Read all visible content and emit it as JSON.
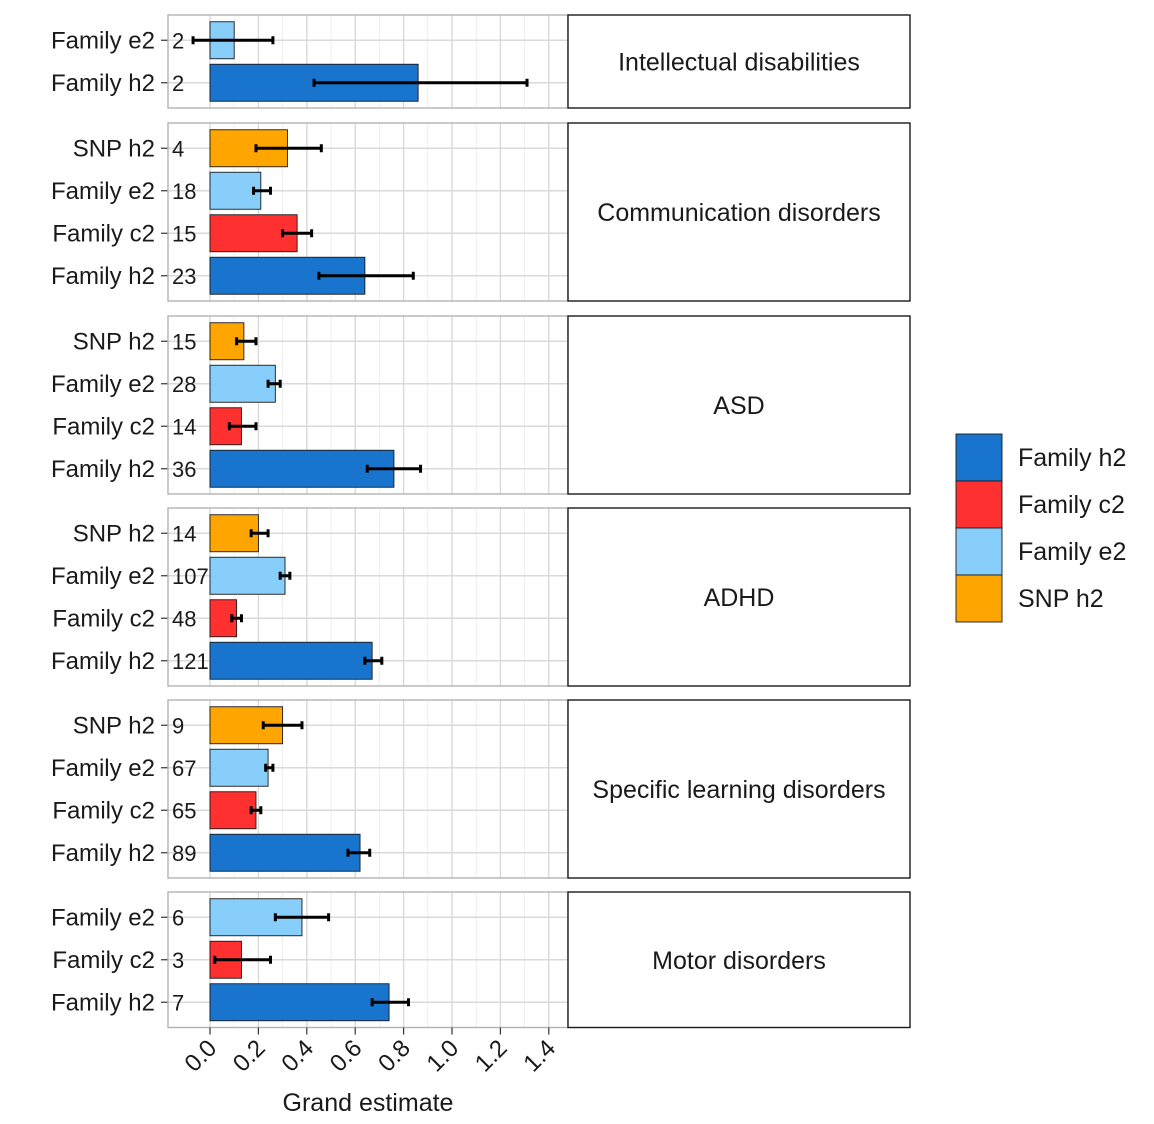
{
  "chart_data": {
    "type": "bar",
    "orientation": "horizontal",
    "xlabel": "Grand estimate",
    "xlim": [
      -0.15,
      1.47
    ],
    "xticks": [
      "0.0",
      "0.2",
      "0.4",
      "0.6",
      "0.8",
      "1.0",
      "1.2",
      "1.4"
    ],
    "legend": {
      "placement": "right",
      "entries": [
        {
          "name": "Family h2",
          "color": "#1874CD"
        },
        {
          "name": "Family c2",
          "color": "#FF3030"
        },
        {
          "name": "Family e2",
          "color": "#87CEFA"
        },
        {
          "name": "SNP h2",
          "color": "#FFA500"
        }
      ]
    },
    "panels": [
      {
        "title": "Intellectual disabilities",
        "bars": [
          {
            "label": "Family e2",
            "n": "2",
            "value": 0.1,
            "lo": -0.07,
            "hi": 0.26
          },
          {
            "label": "Family h2",
            "n": "2",
            "value": 0.86,
            "lo": 0.43,
            "hi": 1.31
          }
        ]
      },
      {
        "title": "Communication disorders",
        "bars": [
          {
            "label": "SNP h2",
            "n": "4",
            "value": 0.32,
            "lo": 0.19,
            "hi": 0.46
          },
          {
            "label": "Family e2",
            "n": "18",
            "value": 0.21,
            "lo": 0.18,
            "hi": 0.25
          },
          {
            "label": "Family c2",
            "n": "15",
            "value": 0.36,
            "lo": 0.3,
            "hi": 0.42
          },
          {
            "label": "Family h2",
            "n": "23",
            "value": 0.64,
            "lo": 0.45,
            "hi": 0.84
          }
        ]
      },
      {
        "title": "ASD",
        "bars": [
          {
            "label": "SNP h2",
            "n": "15",
            "value": 0.14,
            "lo": 0.11,
            "hi": 0.19
          },
          {
            "label": "Family e2",
            "n": "28",
            "value": 0.27,
            "lo": 0.24,
            "hi": 0.29
          },
          {
            "label": "Family c2",
            "n": "14",
            "value": 0.13,
            "lo": 0.08,
            "hi": 0.19
          },
          {
            "label": "Family h2",
            "n": "36",
            "value": 0.76,
            "lo": 0.65,
            "hi": 0.87
          }
        ]
      },
      {
        "title": "ADHD",
        "bars": [
          {
            "label": "SNP h2",
            "n": "14",
            "value": 0.2,
            "lo": 0.17,
            "hi": 0.24
          },
          {
            "label": "Family e2",
            "n": "107",
            "value": 0.31,
            "lo": 0.29,
            "hi": 0.33
          },
          {
            "label": "Family c2",
            "n": "48",
            "value": 0.11,
            "lo": 0.09,
            "hi": 0.13
          },
          {
            "label": "Family h2",
            "n": "121",
            "value": 0.67,
            "lo": 0.64,
            "hi": 0.71
          }
        ]
      },
      {
        "title": "Specific learning disorders",
        "bars": [
          {
            "label": "SNP h2",
            "n": "9",
            "value": 0.3,
            "lo": 0.22,
            "hi": 0.38
          },
          {
            "label": "Family e2",
            "n": "67",
            "value": 0.24,
            "lo": 0.23,
            "hi": 0.26
          },
          {
            "label": "Family c2",
            "n": "65",
            "value": 0.19,
            "lo": 0.17,
            "hi": 0.21
          },
          {
            "label": "Family h2",
            "n": "89",
            "value": 0.62,
            "lo": 0.57,
            "hi": 0.66
          }
        ]
      },
      {
        "title": "Motor disorders",
        "bars": [
          {
            "label": "Family e2",
            "n": "6",
            "value": 0.38,
            "lo": 0.27,
            "hi": 0.49
          },
          {
            "label": "Family c2",
            "n": "3",
            "value": 0.13,
            "lo": 0.02,
            "hi": 0.25
          },
          {
            "label": "Family h2",
            "n": "7",
            "value": 0.74,
            "lo": 0.67,
            "hi": 0.82
          }
        ]
      }
    ]
  }
}
